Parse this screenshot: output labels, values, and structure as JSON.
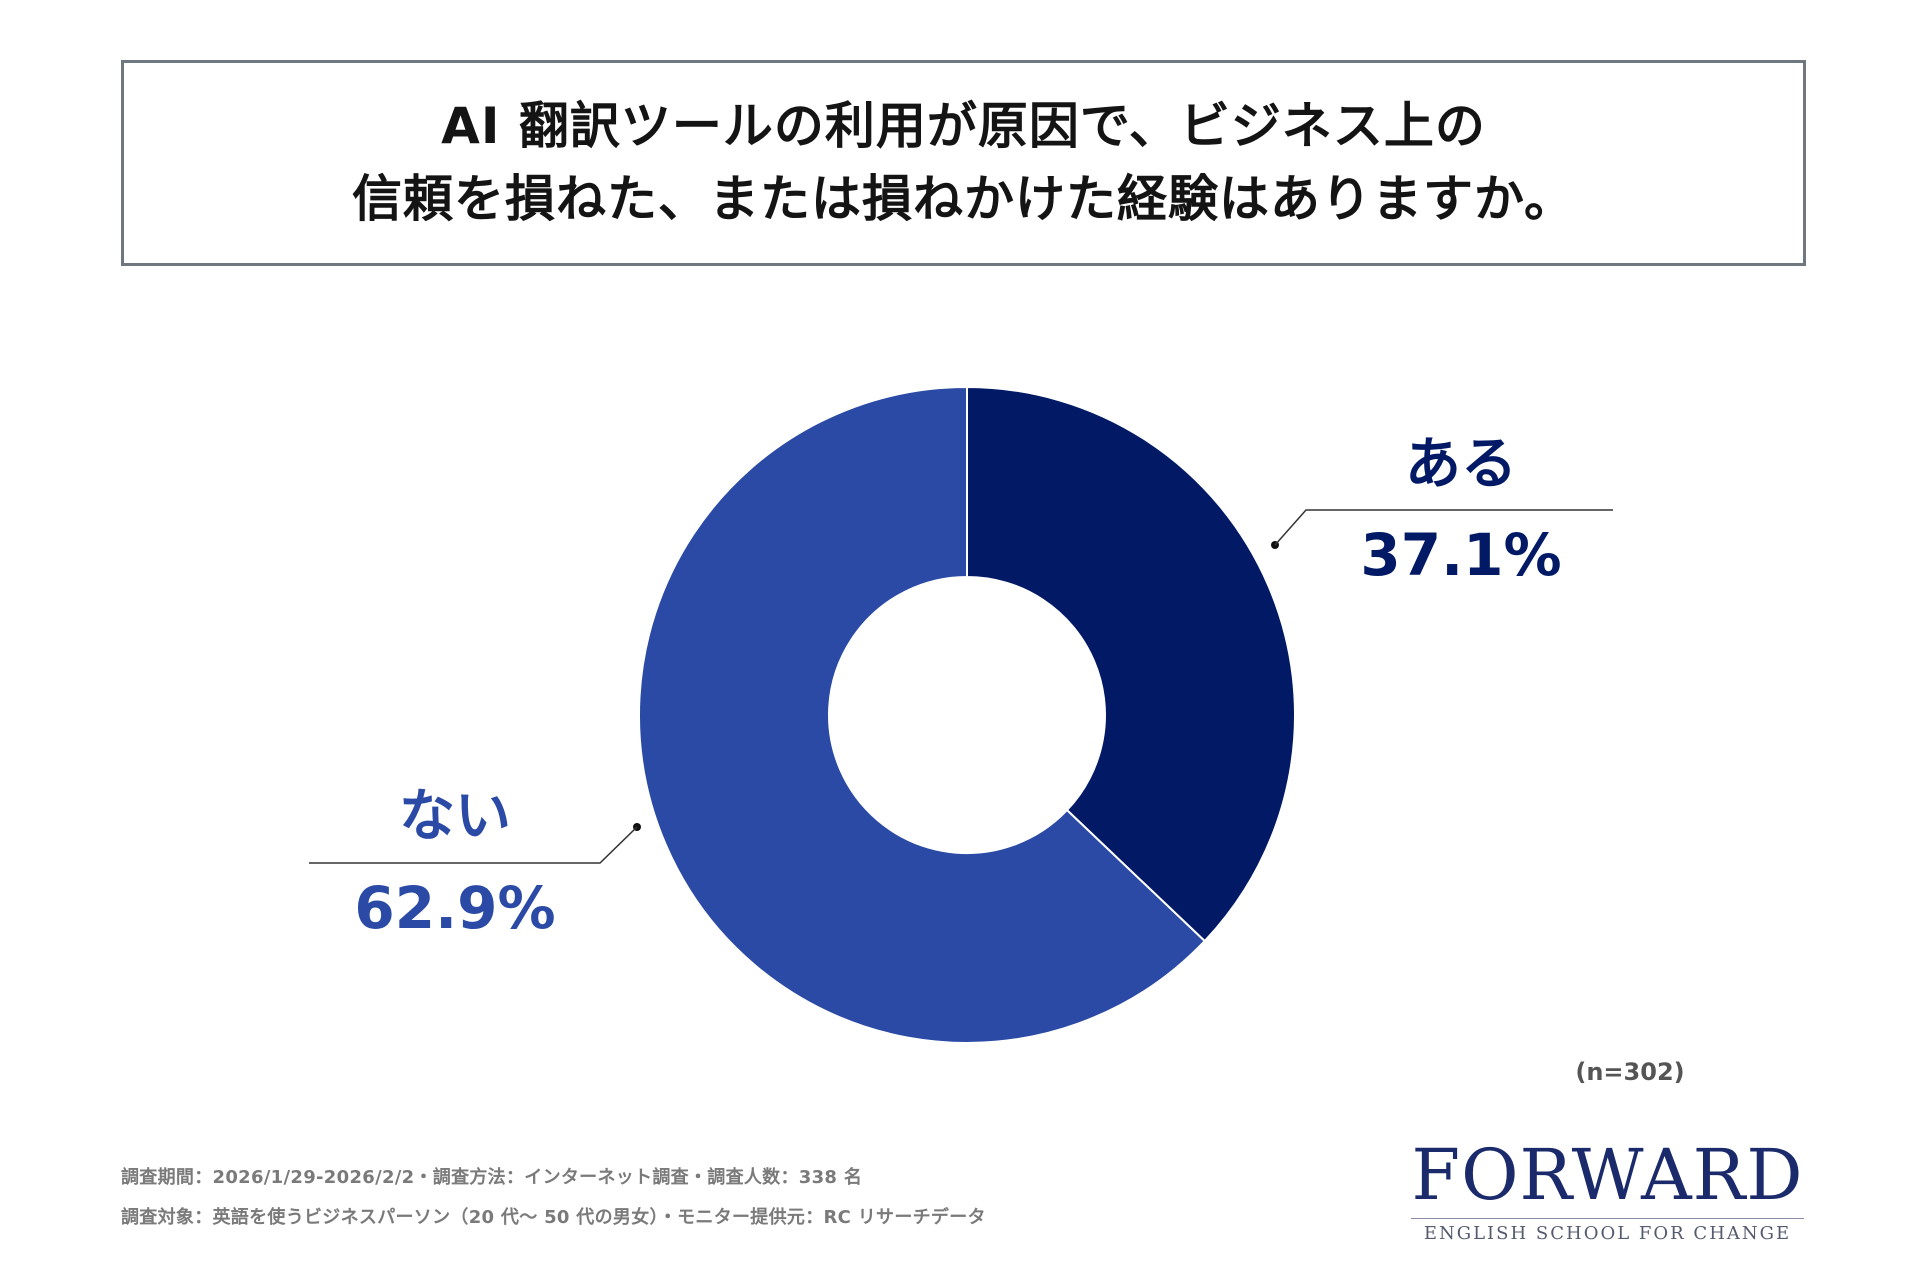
{
  "title": {
    "line1": "AI 翻訳ツールの利用が原因で、ビジネス上の",
    "line2": "信頼を損ねた、または損ねかけた経験はありますか。"
  },
  "chart_data": {
    "type": "pie",
    "donut": true,
    "categories": [
      "ある",
      "ない"
    ],
    "values": [
      37.1,
      62.9
    ],
    "value_labels": [
      "37.1%",
      "62.9%"
    ],
    "colors": [
      "#021a66",
      "#2a4aa5"
    ]
  },
  "sample_size": "(n=302)",
  "footnotes": {
    "line1": "調査期間：2026/1/29-2026/2/2・調査方法：インターネット調査・調査人数：338 名",
    "line2": "調査対象：英語を使うビジネスパーソン（20 代～ 50 代の男女）・モニター提供元：RC リサーチデータ"
  },
  "brand": {
    "name": "FORWARD",
    "tagline": "ENGLISH SCHOOL FOR CHANGE"
  }
}
